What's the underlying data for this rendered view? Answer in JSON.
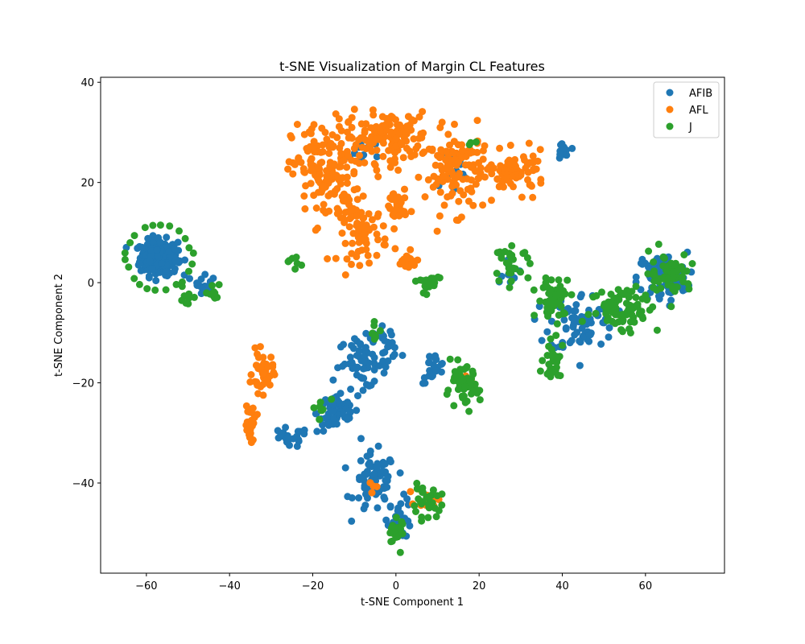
{
  "chart_data": {
    "type": "scatter",
    "title": "t-SNE Visualization of Margin CL Features",
    "xlabel": "t-SNE Component 1",
    "ylabel": "t-SNE Component 2",
    "xlim": [
      -71,
      79
    ],
    "ylim": [
      -58,
      41
    ],
    "xticks": [
      -60,
      -40,
      -20,
      0,
      20,
      40,
      60
    ],
    "yticks": [
      -40,
      -20,
      0,
      20,
      40
    ],
    "xtick_labels": [
      "−60",
      "−40",
      "−20",
      "0",
      "20",
      "40",
      "60"
    ],
    "ytick_labels": [
      "−40",
      "−20",
      "0",
      "20",
      "40"
    ],
    "grid": false,
    "legend_position": "top-right",
    "series": [
      {
        "name": "AFIB",
        "color": "#1f77b4",
        "clusters": [
          {
            "cx": -57,
            "cy": 5,
            "rx": 4.5,
            "ry": 3.5,
            "n": 240
          },
          {
            "cx": -46,
            "cy": 0.5,
            "rx": 2.5,
            "ry": 2.5,
            "n": 14
          },
          {
            "cx": -8,
            "cy": -16,
            "rx": 6,
            "ry": 5,
            "n": 60
          },
          {
            "cx": -14,
            "cy": -26,
            "rx": 5,
            "ry": 4,
            "n": 60
          },
          {
            "cx": -26,
            "cy": -31,
            "rx": 5,
            "ry": 2,
            "n": 22
          },
          {
            "cx": -5,
            "cy": -40,
            "rx": 5,
            "ry": 6,
            "n": 70
          },
          {
            "cx": 1,
            "cy": -47,
            "rx": 3,
            "ry": 4,
            "n": 30
          },
          {
            "cx": 9,
            "cy": -17,
            "rx": 3,
            "ry": 3,
            "n": 22
          },
          {
            "cx": -2,
            "cy": -12,
            "rx": 3,
            "ry": 3,
            "n": 20
          },
          {
            "cx": 40,
            "cy": 26,
            "rx": 1.5,
            "ry": 2,
            "n": 16
          },
          {
            "cx": 64,
            "cy": 1,
            "rx": 6,
            "ry": 5,
            "n": 90
          },
          {
            "cx": 45,
            "cy": -8,
            "rx": 8,
            "ry": 6,
            "n": 75
          },
          {
            "cx": 27,
            "cy": 3,
            "rx": 3,
            "ry": 3,
            "n": 10
          },
          {
            "cx": 13,
            "cy": 22,
            "rx": 5,
            "ry": 6,
            "n": 12
          },
          {
            "cx": -8,
            "cy": 26,
            "rx": 6,
            "ry": 3,
            "n": 10
          }
        ]
      },
      {
        "name": "AFL",
        "color": "#ff7f0e",
        "clusters": [
          {
            "cx": -17,
            "cy": 22,
            "rx": 8,
            "ry": 10,
            "n": 150
          },
          {
            "cx": -2,
            "cy": 29,
            "rx": 10,
            "ry": 5,
            "n": 140
          },
          {
            "cx": -8,
            "cy": 10,
            "rx": 6,
            "ry": 6,
            "n": 70
          },
          {
            "cx": 15,
            "cy": 22,
            "rx": 8,
            "ry": 8,
            "n": 120
          },
          {
            "cx": 29,
            "cy": 22,
            "rx": 7,
            "ry": 4,
            "n": 70
          },
          {
            "cx": 0,
            "cy": 15,
            "rx": 2.5,
            "ry": 4,
            "n": 30
          },
          {
            "cx": 3,
            "cy": 4,
            "rx": 3,
            "ry": 2,
            "n": 18
          },
          {
            "cx": -32,
            "cy": -18,
            "rx": 2.5,
            "ry": 4,
            "n": 40
          },
          {
            "cx": -35,
            "cy": -28,
            "rx": 1.5,
            "ry": 4,
            "n": 25
          },
          {
            "cx": 8,
            "cy": -43,
            "rx": 3,
            "ry": 2,
            "n": 14
          },
          {
            "cx": -6,
            "cy": -41,
            "rx": 1.5,
            "ry": 1.5,
            "n": 4
          },
          {
            "cx": 17,
            "cy": -19,
            "rx": 2,
            "ry": 2,
            "n": 6
          }
        ]
      },
      {
        "name": "J",
        "color": "#2ca02c",
        "clusters": [
          {
            "cx": -57,
            "cy": 5,
            "rx": 8,
            "ry": 6.5,
            "n": 22,
            "ring": true
          },
          {
            "cx": -50,
            "cy": -3,
            "rx": 2,
            "ry": 3,
            "n": 10
          },
          {
            "cx": -44,
            "cy": -2,
            "rx": 2,
            "ry": 2.5,
            "n": 10
          },
          {
            "cx": -23,
            "cy": 4,
            "rx": 2.5,
            "ry": 1,
            "n": 7
          },
          {
            "cx": 16,
            "cy": -21,
            "rx": 4,
            "ry": 4,
            "n": 60
          },
          {
            "cx": 7,
            "cy": -44,
            "rx": 4,
            "ry": 3,
            "n": 30
          },
          {
            "cx": 0,
            "cy": -50,
            "rx": 2,
            "ry": 3,
            "n": 22
          },
          {
            "cx": 8,
            "cy": 0,
            "rx": 3,
            "ry": 2.5,
            "n": 20
          },
          {
            "cx": 28,
            "cy": 4,
            "rx": 4,
            "ry": 3,
            "n": 30
          },
          {
            "cx": 38,
            "cy": -3,
            "rx": 4,
            "ry": 4,
            "n": 50
          },
          {
            "cx": 55,
            "cy": -5,
            "rx": 8,
            "ry": 5,
            "n": 80
          },
          {
            "cx": 66,
            "cy": 2,
            "rx": 5,
            "ry": 4,
            "n": 60
          },
          {
            "cx": 38,
            "cy": -16,
            "rx": 3,
            "ry": 4,
            "n": 30
          },
          {
            "cx": -5,
            "cy": -10,
            "rx": 2,
            "ry": 2,
            "n": 8
          },
          {
            "cx": -18,
            "cy": -25,
            "rx": 2,
            "ry": 2,
            "n": 8
          },
          {
            "cx": 19,
            "cy": 28,
            "rx": 1.5,
            "ry": 2.5,
            "n": 3
          }
        ]
      }
    ]
  }
}
